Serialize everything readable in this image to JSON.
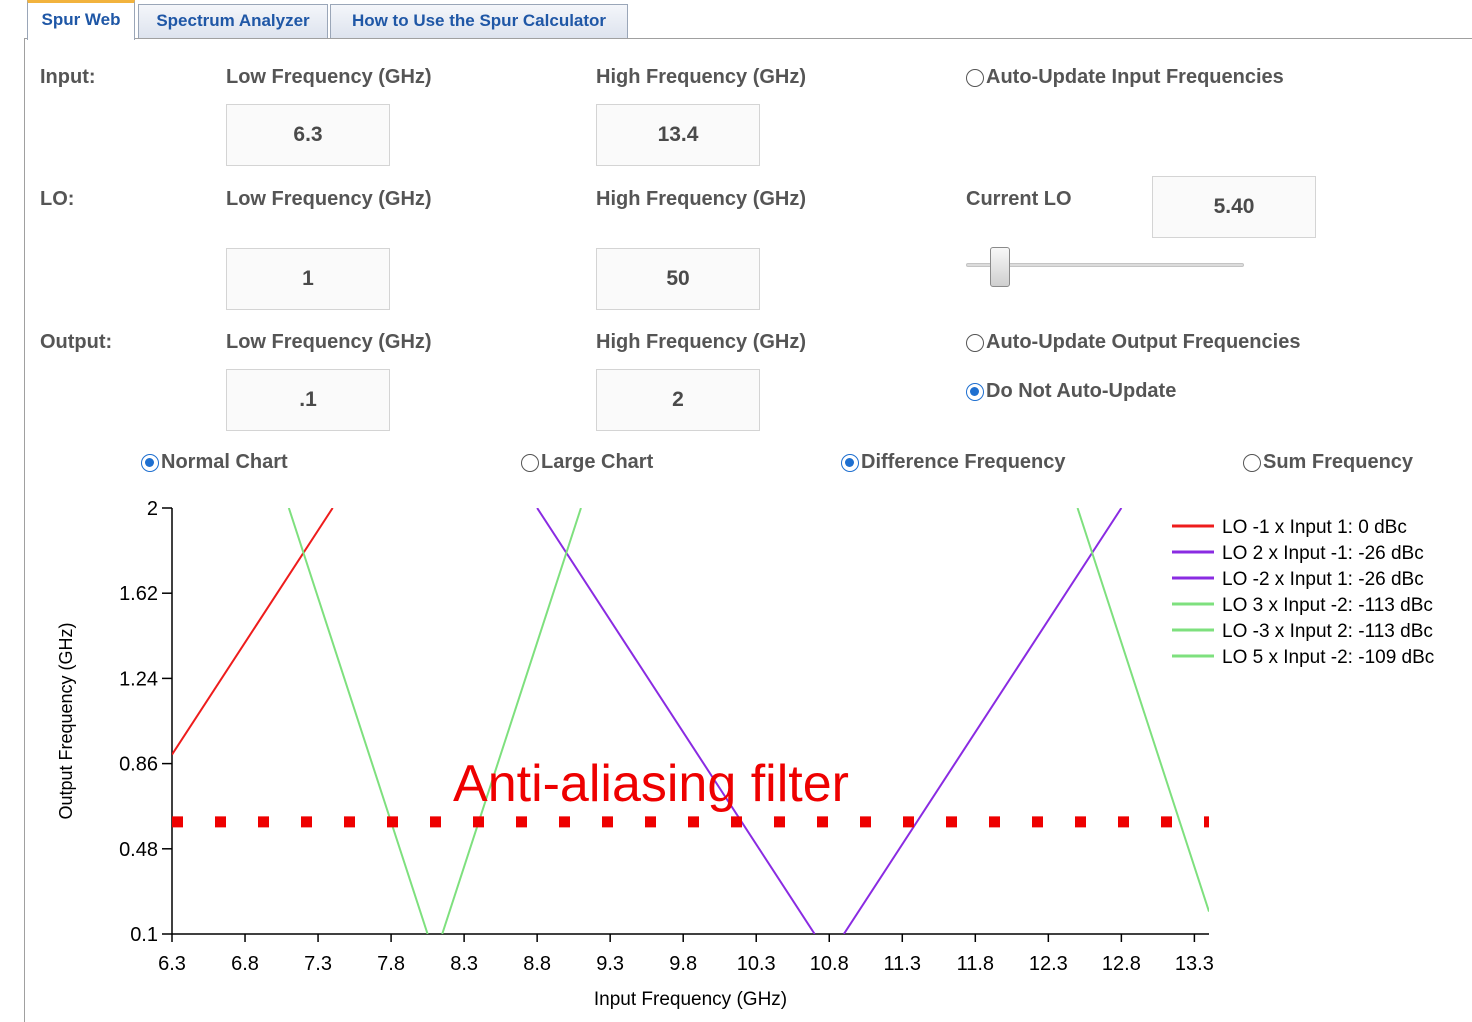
{
  "tabs": [
    {
      "label": "Spur Web",
      "active": true
    },
    {
      "label": "Spectrum Analyzer",
      "active": false
    },
    {
      "label": "How to Use the Spur Calculator",
      "active": false
    }
  ],
  "input": {
    "label": "Input:",
    "low_label": "Low Frequency (GHz)",
    "high_label": "High Frequency (GHz)",
    "low_value": "6.3",
    "high_value": "13.4",
    "auto_update_label": "Auto-Update Input Frequencies",
    "auto_update_checked": false
  },
  "lo": {
    "label": "LO:",
    "low_label": "Low Frequency (GHz)",
    "high_label": "High Frequency (GHz)",
    "low_value": "1",
    "high_value": "50",
    "current_label": "Current LO",
    "current_value": "5.40",
    "slider_value": 5.4
  },
  "output": {
    "label": "Output:",
    "low_label": "Low Frequency (GHz)",
    "high_label": "High Frequency (GHz)",
    "low_value": ".1",
    "high_value": "2",
    "auto_update_label": "Auto-Update Output Frequencies",
    "auto_update_checked": false,
    "no_update_label": "Do Not Auto-Update",
    "no_update_checked": true
  },
  "chart_options": {
    "normal": {
      "label": "Normal Chart",
      "checked": true
    },
    "large": {
      "label": "Large Chart",
      "checked": false
    },
    "difference": {
      "label": "Difference Frequency",
      "checked": true
    },
    "sum": {
      "label": "Sum Frequency",
      "checked": false
    }
  },
  "annotation": {
    "text": "Anti-aliasing filter",
    "level": 0.6,
    "color": "#ee0000"
  },
  "chart_data": {
    "type": "line",
    "title": "",
    "xlabel": "Input Frequency (GHz)",
    "ylabel": "Output Frequency (GHz)",
    "xlim": [
      6.3,
      13.4
    ],
    "ylim": [
      0.1,
      2
    ],
    "xticks": [
      "6.3",
      "6.8",
      "7.3",
      "7.8",
      "8.3",
      "8.8",
      "9.3",
      "9.8",
      "10.3",
      "10.8",
      "11.3",
      "11.8",
      "12.3",
      "12.8",
      "13.3"
    ],
    "yticks": [
      "0.1",
      "0.48",
      "0.86",
      "1.24",
      "1.62",
      "2"
    ],
    "legend_position": "top-right",
    "series": [
      {
        "name": "LO -1 x Input 1: 0 dBc",
        "color": "#ee1c1c",
        "points": [
          [
            6.3,
            0.9
          ],
          [
            7.4,
            2.0
          ]
        ]
      },
      {
        "name": "LO 2 x Input -1: -26 dBc",
        "color": "#8a2be2",
        "points": [
          [
            8.8,
            2.0
          ],
          [
            10.7,
            0.1
          ]
        ]
      },
      {
        "name": "LO -2 x Input 1: -26 dBc",
        "color": "#8a2be2",
        "points": [
          [
            10.9,
            0.1
          ],
          [
            12.8,
            2.0
          ]
        ]
      },
      {
        "name": "LO 3 x Input -2: -113 dBc",
        "color": "#7ee07e",
        "points": [
          [
            7.1,
            2.0
          ],
          [
            8.05,
            0.1
          ]
        ]
      },
      {
        "name": "LO -3 x Input 2: -113 dBc",
        "color": "#7ee07e",
        "points": [
          [
            8.15,
            0.1
          ],
          [
            9.1,
            2.0
          ]
        ]
      },
      {
        "name": "LO 5 x Input -2: -109 dBc",
        "color": "#7ee07e",
        "points": [
          [
            12.5,
            2.0
          ],
          [
            13.4,
            0.2
          ]
        ]
      }
    ]
  }
}
